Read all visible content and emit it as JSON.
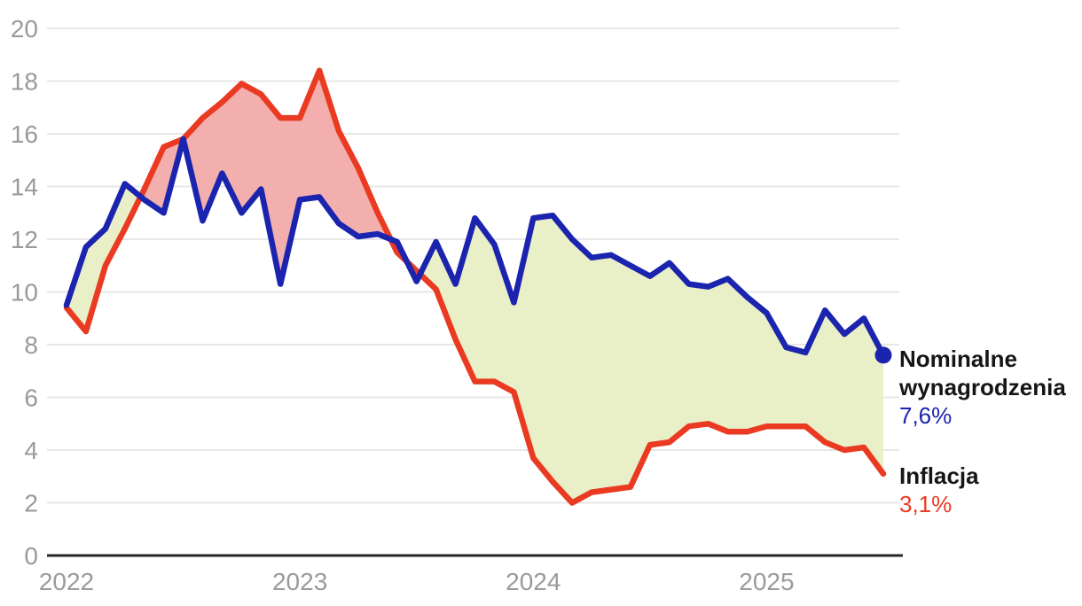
{
  "chart_data": {
    "type": "line",
    "title": "",
    "categories": [
      "2022-01",
      "2022-02",
      "2022-03",
      "2022-04",
      "2022-05",
      "2022-06",
      "2022-07",
      "2022-08",
      "2022-09",
      "2022-10",
      "2022-11",
      "2022-12",
      "2023-01",
      "2023-02",
      "2023-03",
      "2023-04",
      "2023-05",
      "2023-06",
      "2023-07",
      "2023-08",
      "2023-09",
      "2023-10",
      "2023-11",
      "2023-12",
      "2024-01",
      "2024-02",
      "2024-03",
      "2024-04",
      "2024-05",
      "2024-06",
      "2024-07",
      "2024-08",
      "2024-09",
      "2024-10",
      "2024-11",
      "2024-12",
      "2025-01",
      "2025-02",
      "2025-03",
      "2025-04",
      "2025-05",
      "2025-06",
      "2025-07"
    ],
    "series": [
      {
        "id": "wages",
        "name": "Nominalne wynagrodzenia",
        "name_lines": [
          "Nominalne",
          "wynagrodzenia"
        ],
        "current_value_label": "7,6%",
        "color": "#1b24ae",
        "values": [
          9.5,
          11.7,
          12.4,
          14.1,
          13.5,
          13.0,
          15.8,
          12.7,
          14.5,
          13.0,
          13.9,
          10.3,
          13.5,
          13.6,
          12.6,
          12.1,
          12.2,
          11.9,
          10.4,
          11.9,
          10.3,
          12.8,
          11.8,
          9.6,
          12.8,
          12.9,
          12.0,
          11.3,
          11.4,
          11.0,
          10.6,
          11.1,
          10.3,
          10.2,
          10.5,
          9.8,
          9.2,
          7.9,
          7.7,
          9.3,
          8.4,
          9.0,
          7.6
        ]
      },
      {
        "id": "inflation",
        "name": "Inflacja",
        "name_lines": [
          "Inflacja"
        ],
        "current_value_label": "3,1%",
        "color": "#ea3a22",
        "values": [
          9.4,
          8.5,
          11.0,
          12.4,
          13.9,
          15.5,
          15.8,
          16.6,
          17.2,
          17.9,
          17.5,
          16.6,
          16.6,
          18.4,
          16.1,
          14.7,
          13.0,
          11.5,
          10.8,
          10.1,
          8.2,
          6.6,
          6.6,
          6.2,
          3.7,
          2.8,
          2.0,
          2.4,
          2.5,
          2.6,
          4.2,
          4.3,
          4.9,
          5.0,
          4.7,
          4.7,
          4.9,
          4.9,
          4.9,
          4.3,
          4.0,
          4.1,
          3.1
        ]
      }
    ],
    "ylim": [
      0,
      20
    ],
    "yticks": [
      0,
      2,
      4,
      6,
      8,
      10,
      12,
      14,
      16,
      18,
      20
    ],
    "x_tick_labels": [
      {
        "label": "2022",
        "month_index": 0
      },
      {
        "label": "2023",
        "month_index": 12
      },
      {
        "label": "2024",
        "month_index": 24
      },
      {
        "label": "2025",
        "month_index": 36
      }
    ],
    "grid": true,
    "legend_position": "right-end-of-line",
    "fill_between": {
      "wages_above_color": "#e9efc6",
      "inflation_above_color": "#f2afad"
    },
    "end_dot_series": "wages"
  },
  "colors": {
    "background": "#ffffff",
    "gridline": "#e7e7e7",
    "axis_line": "#262626",
    "tick_label": "#9a9a9a",
    "label_text": "#161616"
  }
}
